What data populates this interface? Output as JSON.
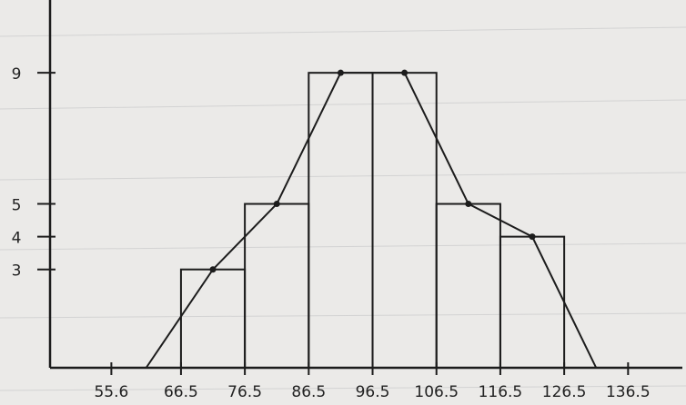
{
  "chart_data": {
    "type": "histogram",
    "bins": [
      55.6,
      66.5,
      76.5,
      86.5,
      96.5,
      106.5,
      116.5,
      126.5,
      136.5
    ],
    "counts": [
      0,
      3,
      5,
      9,
      9,
      5,
      4,
      0
    ],
    "xlim": [
      46,
      145
    ],
    "ylim": [
      0,
      11
    ],
    "xticks": [
      55.6,
      66.5,
      76.5,
      86.5,
      96.5,
      106.5,
      116.5,
      126.5,
      136.5
    ],
    "yticks": [
      3,
      4,
      5,
      9
    ],
    "color": "#1c1c1c",
    "frequency_polygon": true
  }
}
